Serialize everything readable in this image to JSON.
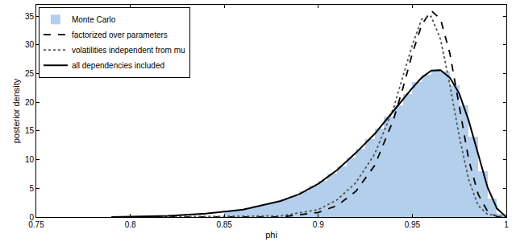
{
  "chart_data": {
    "type": "histogram",
    "x_label": "phi",
    "y_label": "posterior density",
    "xlim": [
      0.75,
      1
    ],
    "xticks": [
      0.75,
      0.8,
      0.85,
      0.9,
      0.95,
      1
    ],
    "ylim": [
      0,
      37
    ],
    "yticks": [
      0,
      5,
      10,
      15,
      20,
      25,
      30,
      35
    ],
    "legend": "upper left",
    "grid": false,
    "series": [
      {
        "name": "Monte Carlo",
        "type": "histogram",
        "color": "#b4cfec",
        "bins": [
          0.85,
          0.855,
          0.86,
          0.865,
          0.87,
          0.875,
          0.88,
          0.885,
          0.89,
          0.895,
          0.9,
          0.905,
          0.91,
          0.915,
          0.92,
          0.925,
          0.93,
          0.935,
          0.94,
          0.945,
          0.95,
          0.955,
          0.96,
          0.965,
          0.97,
          0.975,
          0.98,
          0.985,
          0.99,
          0.995,
          1.0
        ],
        "values": [
          1.1,
          1.3,
          1.6,
          1.9,
          2.2,
          2.6,
          3.1,
          3.7,
          4.5,
          5.4,
          6.3,
          7.5,
          8.8,
          10.4,
          11.9,
          13.6,
          15.4,
          17.5,
          19.5,
          21.5,
          23.5,
          24.8,
          25.8,
          25.3,
          23.0,
          19.5,
          14.0,
          8.0,
          3.2,
          0.6
        ]
      },
      {
        "name": "factorized over parameters",
        "type": "line",
        "line_style": "dashed",
        "color": "#000000",
        "x": [
          0.79,
          0.88,
          0.9,
          0.91,
          0.92,
          0.93,
          0.94,
          0.945,
          0.95,
          0.955,
          0.96,
          0.965,
          0.97,
          0.975,
          0.98,
          0.985,
          0.99,
          0.995,
          1.0
        ],
        "values": [
          0,
          0,
          0.8,
          2,
          4.5,
          9,
          17,
          22.5,
          28.5,
          33.5,
          36,
          34.5,
          28.5,
          19,
          10,
          4,
          1,
          0.1,
          0
        ]
      },
      {
        "name": "volatilities independent from mu",
        "type": "line",
        "line_style": "dotted",
        "color": "#555555",
        "x": [
          0.79,
          0.88,
          0.9,
          0.91,
          0.92,
          0.93,
          0.94,
          0.945,
          0.95,
          0.955,
          0.96,
          0.965,
          0.97,
          0.975,
          0.98,
          0.985,
          0.99,
          1.0
        ],
        "values": [
          0,
          0.2,
          1.3,
          3,
          6,
          11,
          19,
          24.5,
          30,
          34.5,
          35,
          31,
          23,
          14,
          6.5,
          2,
          0.5,
          0
        ]
      },
      {
        "name": "all dependencies included",
        "type": "line",
        "line_style": "solid",
        "color": "#000000",
        "x": [
          0.79,
          0.8,
          0.82,
          0.84,
          0.86,
          0.88,
          0.89,
          0.9,
          0.91,
          0.92,
          0.93,
          0.94,
          0.95,
          0.955,
          0.96,
          0.965,
          0.97,
          0.975,
          0.98,
          0.985,
          0.99,
          0.995,
          1.0
        ],
        "values": [
          0,
          0.05,
          0.2,
          0.6,
          1.3,
          2.8,
          4,
          5.8,
          8.2,
          11.2,
          14.5,
          18.5,
          22.5,
          24.3,
          25.5,
          25.6,
          24.3,
          21.5,
          16.8,
          11,
          5.2,
          1.5,
          0
        ]
      }
    ]
  }
}
